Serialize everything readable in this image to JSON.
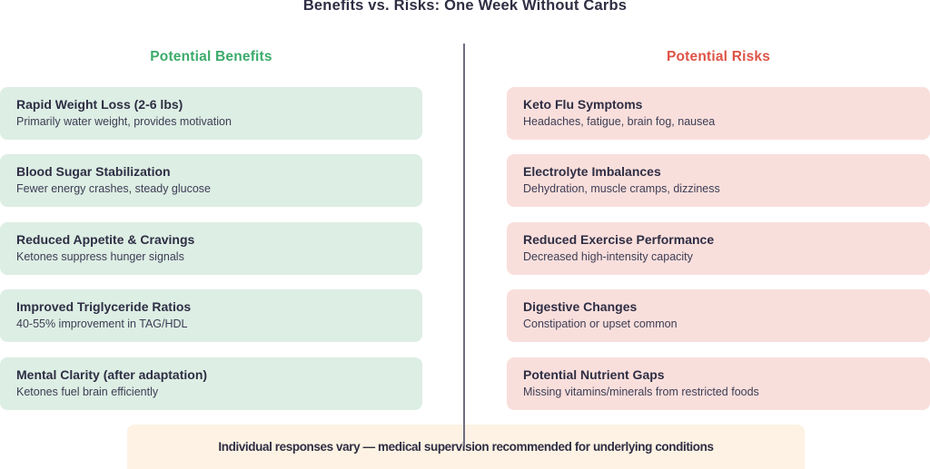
{
  "title": "Benefits vs. Risks: One Week Without Carbs",
  "benefits": {
    "header": "Potential Benefits",
    "header_color": "#3cab6b",
    "card_bg": "#ddeee4",
    "items": [
      {
        "title": "Rapid Weight Loss (2-6 lbs)",
        "subtitle": "Primarily water weight, provides motivation"
      },
      {
        "title": "Blood Sugar Stabilization",
        "subtitle": "Fewer energy crashes, steady glucose"
      },
      {
        "title": "Reduced Appetite & Cravings",
        "subtitle": "Ketones suppress hunger signals"
      },
      {
        "title": "Improved Triglyceride Ratios",
        "subtitle": "40-55% improvement in TAG/HDL"
      },
      {
        "title": "Mental Clarity (after adaptation)",
        "subtitle": "Ketones fuel brain efficiently"
      }
    ]
  },
  "risks": {
    "header": "Potential Risks",
    "header_color": "#dd5446",
    "card_bg": "#f9dfdc",
    "items": [
      {
        "title": "Keto Flu Symptoms",
        "subtitle": "Headaches, fatigue, brain fog, nausea"
      },
      {
        "title": "Electrolyte Imbalances",
        "subtitle": "Dehydration, muscle cramps, dizziness"
      },
      {
        "title": "Reduced Exercise Performance",
        "subtitle": "Decreased high-intensity capacity"
      },
      {
        "title": "Digestive Changes",
        "subtitle": "Constipation or upset common"
      },
      {
        "title": "Potential Nutrient Gaps",
        "subtitle": "Missing vitamins/minerals from restricted foods"
      }
    ]
  },
  "footer": {
    "note": "Individual responses vary — medical supervision recommended for underlying conditions",
    "bg": "#fdf2e3"
  },
  "divider_color": "#6e6e82",
  "title_color": "#2e2e44"
}
